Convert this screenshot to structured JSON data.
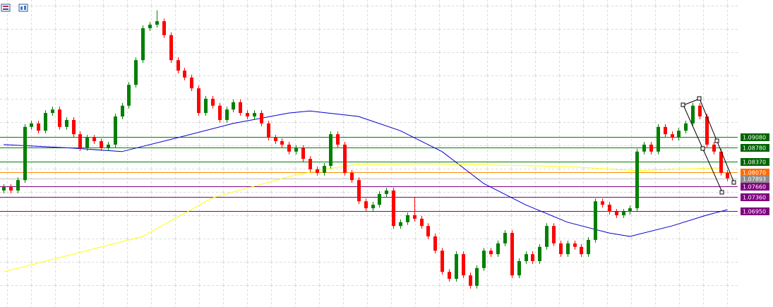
{
  "chart_data": {
    "type": "candlestick",
    "ylim": [
      1.0419,
      1.1302
    ],
    "up_color": "#008000",
    "down_color": "#ff0000",
    "grid": true,
    "open": [
      1.0754,
      1.0764,
      1.0754,
      1.0784,
      1.0937,
      1.0947,
      1.0926,
      1.0977,
      1.0987,
      1.0937,
      1.0957,
      1.0916,
      1.0876,
      1.0906,
      1.0896,
      1.0876,
      1.0886,
      1.0967,
      1.0998,
      1.1058,
      1.1129,
      1.1221,
      1.1231,
      1.1241,
      1.1201,
      1.1129,
      1.1099,
      1.1079,
      1.1048,
      1.0977,
      1.1018,
      1.0998,
      1.0957,
      1.0987,
      1.1008,
      1.0977,
      1.0967,
      1.0977,
      1.0947,
      1.0906,
      1.0896,
      1.0886,
      1.0866,
      1.0876,
      1.0845,
      1.0815,
      1.0805,
      1.0825,
      1.0916,
      1.0886,
      1.0805,
      1.0784,
      1.0723,
      1.0703,
      1.0713,
      1.0744,
      1.0754,
      1.0652,
      1.0663,
      1.0683,
      1.0673,
      1.0652,
      1.0622,
      1.0581,
      1.052,
      1.05,
      1.0571,
      1.051,
      1.048,
      1.0531,
      1.0581,
      1.0571,
      1.0602,
      1.0632,
      1.051,
      1.0551,
      1.0571,
      1.0551,
      1.0592,
      1.0652,
      1.0602,
      1.0571,
      1.0602,
      1.0592,
      1.0571,
      1.0612,
      1.0723,
      1.0713,
      1.0693,
      1.0683,
      1.0693,
      1.0703,
      1.0866,
      1.0886,
      1.0866,
      1.0937,
      1.0916,
      1.0906,
      1.0926,
      1.0947,
      1.0998,
      1.0967,
      1.0886,
      1.0866,
      1.0805
    ],
    "high": [
      1.0772,
      1.0772,
      1.0792,
      1.0945,
      1.0955,
      1.0955,
      1.0985,
      1.0995,
      1.0995,
      1.0965,
      1.0965,
      1.0924,
      1.0914,
      1.0914,
      1.0904,
      1.0894,
      1.0975,
      1.1006,
      1.1066,
      1.1137,
      1.1229,
      1.1239,
      1.1272,
      1.1249,
      1.1209,
      1.1137,
      1.1107,
      1.1087,
      1.1056,
      1.1026,
      1.1026,
      1.1006,
      1.0995,
      1.1016,
      1.1016,
      1.0985,
      1.0985,
      1.0985,
      1.0955,
      1.0914,
      1.0904,
      1.0894,
      1.0884,
      1.0884,
      1.0853,
      1.0823,
      1.0833,
      1.0924,
      1.0924,
      1.0894,
      1.0813,
      1.0792,
      1.0731,
      1.0721,
      1.0752,
      1.0762,
      1.0762,
      1.0671,
      1.0691,
      1.0735,
      1.0681,
      1.066,
      1.063,
      1.0589,
      1.0528,
      1.0579,
      1.0579,
      1.0518,
      1.0539,
      1.0589,
      1.0589,
      1.061,
      1.064,
      1.064,
      1.0559,
      1.0579,
      1.0579,
      1.06,
      1.066,
      1.066,
      1.061,
      1.061,
      1.061,
      1.06,
      1.062,
      1.0731,
      1.0731,
      1.0721,
      1.0701,
      1.0701,
      1.0711,
      1.0874,
      1.0894,
      1.0894,
      1.0945,
      1.0945,
      1.0924,
      1.0934,
      1.0955,
      1.1006,
      1.1006,
      1.0975,
      1.0894,
      1.0874,
      1.0813
    ],
    "low": [
      1.0746,
      1.0746,
      1.0746,
      1.0776,
      1.0929,
      1.0918,
      1.0918,
      1.0969,
      1.0929,
      1.0929,
      1.0908,
      1.0868,
      1.0868,
      1.0888,
      1.0868,
      1.0868,
      1.0878,
      1.0959,
      1.099,
      1.105,
      1.1121,
      1.1213,
      1.1223,
      1.1193,
      1.1121,
      1.1091,
      1.1071,
      1.104,
      1.0969,
      1.0969,
      1.099,
      1.0949,
      1.0949,
      1.0979,
      1.0969,
      1.0959,
      1.0959,
      1.0939,
      1.0898,
      1.0888,
      1.0878,
      1.0858,
      1.0858,
      1.0837,
      1.0807,
      1.0797,
      1.0797,
      1.0817,
      1.0878,
      1.0797,
      1.0776,
      1.0715,
      1.0695,
      1.0695,
      1.0705,
      1.0736,
      1.0644,
      1.0644,
      1.0655,
      1.0665,
      1.0644,
      1.0614,
      1.0573,
      1.0512,
      1.0492,
      1.0492,
      1.0502,
      1.0472,
      1.0472,
      1.0523,
      1.0563,
      1.0563,
      1.0594,
      1.0502,
      1.0502,
      1.0543,
      1.0543,
      1.0543,
      1.0584,
      1.0594,
      1.0563,
      1.0563,
      1.0584,
      1.0563,
      1.0563,
      1.0604,
      1.0705,
      1.0685,
      1.0675,
      1.0675,
      1.0685,
      1.0695,
      1.0858,
      1.0858,
      1.0858,
      1.0908,
      1.0898,
      1.0898,
      1.0918,
      1.0939,
      1.0959,
      1.0878,
      1.0858,
      1.0797,
      1.0781
    ],
    "close": [
      1.0764,
      1.0754,
      1.0784,
      1.0937,
      1.0947,
      1.0926,
      1.0977,
      1.0987,
      1.0937,
      1.0957,
      1.0916,
      1.0876,
      1.0906,
      1.0896,
      1.0876,
      1.0886,
      1.0967,
      1.0998,
      1.1058,
      1.1129,
      1.1221,
      1.1231,
      1.1241,
      1.1201,
      1.1129,
      1.1099,
      1.1079,
      1.1048,
      1.0977,
      1.1018,
      1.0998,
      1.0957,
      1.0987,
      1.1008,
      1.0977,
      1.0967,
      1.0977,
      1.0947,
      1.0906,
      1.0896,
      1.0886,
      1.0866,
      1.0876,
      1.0845,
      1.0815,
      1.0805,
      1.0825,
      1.0916,
      1.0886,
      1.0805,
      1.0784,
      1.0723,
      1.0703,
      1.0713,
      1.0744,
      1.0754,
      1.0652,
      1.0663,
      1.0683,
      1.0673,
      1.0652,
      1.0622,
      1.0581,
      1.052,
      1.05,
      1.0571,
      1.051,
      1.048,
      1.0531,
      1.0581,
      1.0571,
      1.0602,
      1.0632,
      1.051,
      1.0551,
      1.0571,
      1.0551,
      1.0592,
      1.0652,
      1.0602,
      1.0571,
      1.0602,
      1.0592,
      1.0571,
      1.0612,
      1.0723,
      1.0713,
      1.0693,
      1.0683,
      1.0693,
      1.0703,
      1.0866,
      1.0886,
      1.0866,
      1.0937,
      1.0916,
      1.0906,
      1.0926,
      1.0947,
      1.0998,
      1.0967,
      1.0886,
      1.0866,
      1.0805,
      1.07893
    ],
    "series": [
      {
        "color": "#0000cd",
        "x": [
          0,
          10,
          17,
          25,
          33,
          41,
          44,
          51,
          57,
          63,
          69,
          75,
          81,
          87,
          90,
          96,
          101,
          104
        ],
        "values": [
          1.0886,
          1.0876,
          1.0866,
          1.0906,
          1.0947,
          1.0977,
          1.0983,
          1.0967,
          1.0926,
          1.0866,
          1.0774,
          1.0713,
          1.0663,
          1.0632,
          1.0622,
          1.0652,
          1.0683,
          1.0699
        ]
      },
      {
        "color": "#ffff00",
        "x": [
          0,
          20,
          30,
          41,
          46,
          51,
          61,
          81,
          91,
          96,
          103
        ],
        "values": [
          1.052,
          1.0622,
          1.0733,
          1.0794,
          1.0815,
          1.0829,
          1.0831,
          1.0823,
          1.0811,
          1.0815,
          1.0819
        ]
      }
    ],
    "levels": [
      {
        "value": 1.0908,
        "label": "1.09080",
        "color": "#008000",
        "label_color": "#006400"
      },
      {
        "value": 1.0878,
        "label": "1.08780",
        "color": "#008000",
        "label_color": "#006400"
      },
      {
        "value": 1.0837,
        "label": "1.08370",
        "color": "#008000",
        "label_color": "#006400"
      },
      {
        "value": 1.0807,
        "label": "1.08070",
        "color": "#ff8c00",
        "label_color": "#ff6a00"
      },
      {
        "value": 1.07893,
        "label": "1.07893",
        "color": "#c0c0c0",
        "label_color": "#8c8c8c"
      },
      {
        "value": 1.0766,
        "label": "1.07660",
        "color": "#800080",
        "label_color": "#800080"
      },
      {
        "value": 1.0736,
        "label": "1.07360",
        "color": "#800080",
        "label_color": "#800080"
      },
      {
        "value": 1.0695,
        "label": "1.06950",
        "color": "#800080",
        "label_color": "#800080"
      }
    ]
  }
}
